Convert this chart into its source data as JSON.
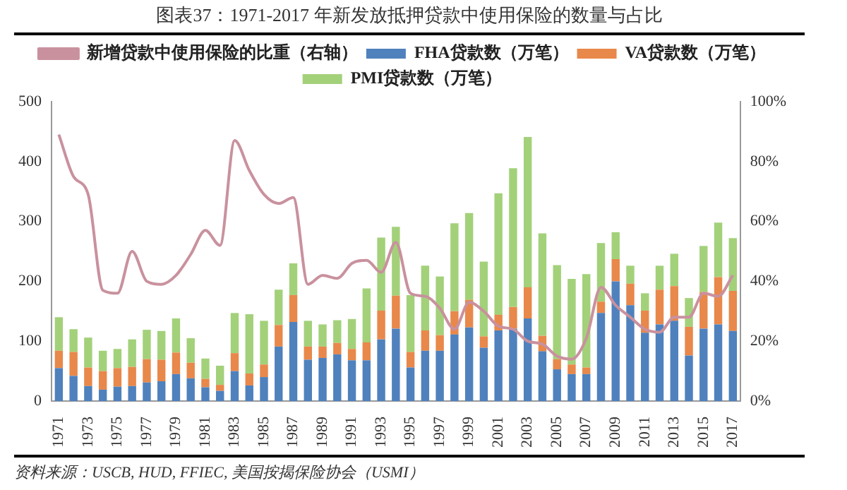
{
  "chart_data": {
    "type": "bar",
    "stacked": true,
    "title": "图表37：1971-2017 年新发放抵押贷款中使用保险的数量与占比",
    "annotations": [
      "资料来源：USCB, HUD, FFIEC, 美国按揭保险协会（USMI）"
    ],
    "categories": [
      "1971",
      null,
      "1973",
      null,
      "1975",
      null,
      "1977",
      null,
      "1979",
      null,
      "1981",
      null,
      "1983",
      null,
      "1985",
      null,
      "1987",
      null,
      "1989",
      null,
      "1991",
      null,
      "1993",
      null,
      "1995",
      null,
      "1997",
      null,
      "1999",
      null,
      "2001",
      null,
      "2003",
      null,
      "2005",
      null,
      "2007",
      null,
      "2009",
      null,
      "2011",
      null,
      "2013",
      null,
      "2015",
      null,
      "2017"
    ],
    "series": [
      {
        "name": "FHA贷款数（万笔）",
        "color": "#4f81bd",
        "values": [
          55,
          42,
          25,
          19,
          24,
          25,
          31,
          33,
          45,
          38,
          23,
          17,
          50,
          26,
          40,
          91,
          132,
          69,
          72,
          78,
          68,
          68,
          103,
          121,
          56,
          84,
          84,
          111,
          123,
          89,
          118,
          121,
          138,
          83,
          53,
          45,
          45,
          147,
          200,
          160,
          114,
          128,
          134,
          76,
          121,
          128,
          117
        ]
      },
      {
        "name": "VA贷款数（万笔）",
        "color": "#e8884a",
        "values": [
          29,
          40,
          31,
          31,
          31,
          32,
          39,
          36,
          36,
          26,
          14,
          10,
          30,
          20,
          21,
          36,
          45,
          22,
          19,
          19,
          19,
          30,
          48,
          55,
          26,
          34,
          26,
          39,
          46,
          19,
          26,
          36,
          52,
          26,
          17,
          16,
          11,
          19,
          37,
          36,
          37,
          58,
          58,
          48,
          61,
          79,
          67
        ]
      },
      {
        "name": "PMI贷款数（万笔）",
        "color": "#a3d17a",
        "values": [
          56,
          38,
          50,
          34,
          32,
          46,
          49,
          48,
          57,
          41,
          34,
          32,
          67,
          99,
          73,
          59,
          53,
          43,
          37,
          38,
          50,
          90,
          122,
          115,
          95,
          108,
          98,
          147,
          145,
          125,
          203,
          232,
          251,
          171,
          157,
          143,
          156,
          98,
          45,
          30,
          29,
          40,
          54,
          48,
          77,
          91,
          88
        ]
      },
      {
        "name": "新增贷款中使用保险的比重（右轴）",
        "type": "line",
        "axis": "y2",
        "color": "#c9919e",
        "values": [
          89,
          75,
          69,
          37,
          36,
          50,
          40,
          39,
          42,
          49,
          57,
          52,
          87,
          77,
          69,
          66,
          68,
          39,
          42,
          41,
          46,
          47,
          43,
          53,
          36,
          35,
          31,
          24,
          33,
          30,
          25,
          24,
          20,
          19,
          15,
          14,
          21,
          38,
          32,
          28,
          24,
          23,
          28,
          28,
          36,
          35,
          42
        ]
      }
    ],
    "ylim": [
      0,
      500
    ],
    "yticks": [
      0,
      100,
      200,
      300,
      400,
      500
    ],
    "y2lim": [
      0,
      100
    ],
    "y2ticks": [
      {
        "value": 0,
        "label": "0%"
      },
      {
        "value": 20,
        "label": "20%"
      },
      {
        "value": 40,
        "label": "40%"
      },
      {
        "value": 60,
        "label": "60%"
      },
      {
        "value": 80,
        "label": "80%"
      },
      {
        "value": 100,
        "label": "100%"
      }
    ],
    "legend": "top",
    "grid": false,
    "marker": "none"
  }
}
